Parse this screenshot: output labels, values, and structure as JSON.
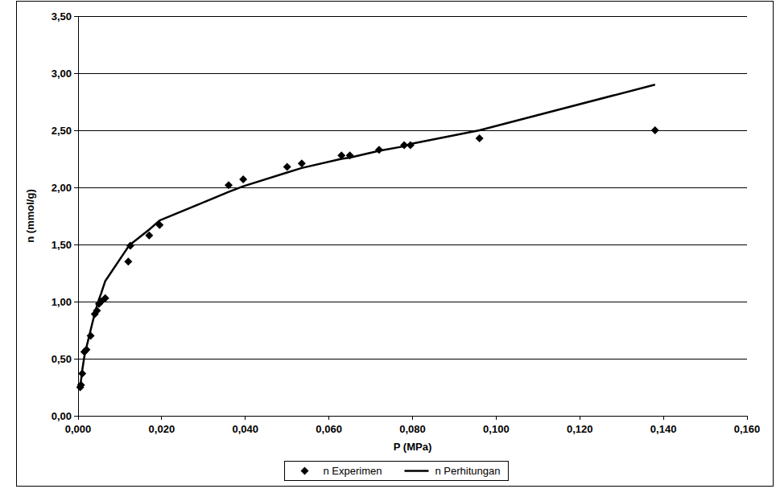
{
  "chart_data": {
    "type": "scatter",
    "x_label": "P (MPa)",
    "y_label": "n (mmol/g)",
    "x": [
      0.0005,
      0.0007,
      0.001,
      0.0015,
      0.002,
      0.003,
      0.004,
      0.0045,
      0.005,
      0.0055,
      0.0065,
      0.012,
      0.0125,
      0.017,
      0.0195,
      0.036,
      0.0395,
      0.05,
      0.0535,
      0.063,
      0.065,
      0.072,
      0.078,
      0.0795,
      0.096,
      0.138
    ],
    "series": [
      {
        "name": "n Experimen",
        "type": "scatter",
        "marker": "diamond",
        "color": "#000000",
        "values": [
          0.25,
          0.27,
          0.37,
          0.56,
          0.58,
          0.7,
          0.89,
          0.92,
          0.98,
          1.0,
          1.03,
          1.35,
          1.49,
          1.58,
          1.67,
          2.02,
          2.07,
          2.18,
          2.21,
          2.28,
          2.28,
          2.33,
          2.37,
          2.37,
          2.43,
          2.5
        ]
      },
      {
        "name": "n Perhitungan",
        "type": "line",
        "line_style": "solid",
        "color": "#000000",
        "values": [
          0.27,
          0.31,
          0.4,
          0.52,
          0.6,
          0.75,
          0.9,
          0.96,
          1.02,
          1.07,
          1.18,
          1.48,
          1.5,
          1.63,
          1.71,
          1.96,
          2.01,
          2.13,
          2.17,
          2.25,
          2.26,
          2.32,
          2.36,
          2.38,
          2.5,
          2.9
        ]
      }
    ],
    "xlim": [
      0,
      0.16
    ],
    "ylim": [
      0,
      3.5
    ],
    "xticks": [
      {
        "value": 0,
        "label": "0,000"
      },
      {
        "value": 0.02,
        "label": "0,020"
      },
      {
        "value": 0.04,
        "label": "0,040"
      },
      {
        "value": 0.06,
        "label": "0,060"
      },
      {
        "value": 0.08,
        "label": "0,080"
      },
      {
        "value": 0.1,
        "label": "0,100"
      },
      {
        "value": 0.12,
        "label": "0,120"
      },
      {
        "value": 0.14,
        "label": "0,140"
      },
      {
        "value": 0.16,
        "label": "0,160"
      }
    ],
    "yticks": [
      {
        "value": 0,
        "label": "0,00"
      },
      {
        "value": 0.5,
        "label": "0,50"
      },
      {
        "value": 1,
        "label": "1,00"
      },
      {
        "value": 1.5,
        "label": "1,50"
      },
      {
        "value": 2,
        "label": "2,00"
      },
      {
        "value": 2.5,
        "label": "2,50"
      },
      {
        "value": 3,
        "label": "3,00"
      },
      {
        "value": 3.5,
        "label": "3,50"
      }
    ],
    "grid": true,
    "legend": "bottom"
  }
}
